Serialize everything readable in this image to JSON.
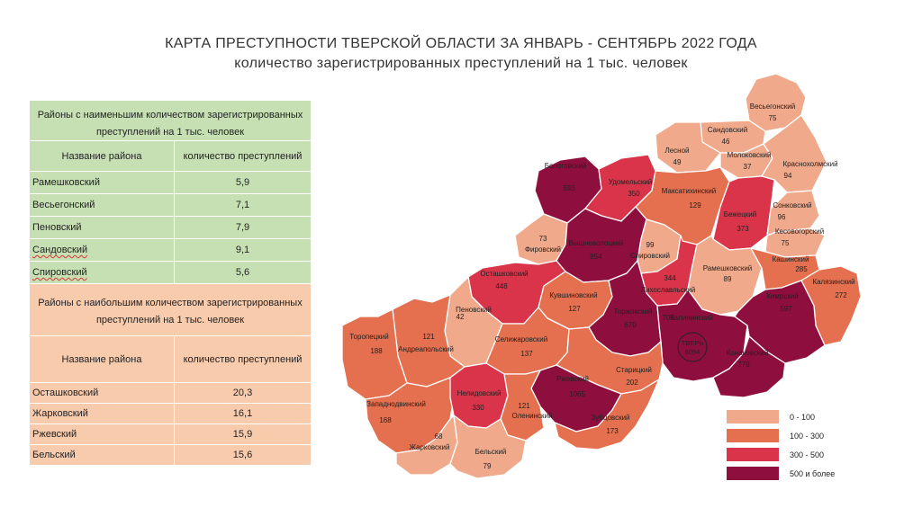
{
  "title": "КАРТА ПРЕСТУПНОСТИ ТВЕРСКОЙ ОБЛАСТИ ЗА ЯНВАРЬ - СЕНТЯБРЬ 2022 ГОДА",
  "subtitle": "количество зарегистрированных преступлений на 1 тыс. человек",
  "colors": {
    "c0": "#f0a98b",
    "c1": "#e4704f",
    "c2": "#d9344a",
    "c3": "#8e0f3d",
    "stroke": "#ffffff"
  },
  "table_low": {
    "header": "Районы с наименьшим количеством зарегистрированных преступлений на 1 тыс. человек",
    "col1": "Название района",
    "col2": "количество преступлений",
    "rows": [
      {
        "name": "Рамешковский",
        "value": "5,9"
      },
      {
        "name": "Весьегонский",
        "value": "7,1"
      },
      {
        "name": "Пеновский",
        "value": "7,9"
      },
      {
        "name": "Сандовский",
        "value": "9,1"
      },
      {
        "name": "Спировский",
        "value": "5,6"
      }
    ]
  },
  "table_high": {
    "header": "Районы с наибольшим количеством зарегистрированных преступлений на 1 тыс. человек",
    "col1": "Название района",
    "col2": "количество преступлений",
    "rows": [
      {
        "name": "Осташковский",
        "value": "20,3"
      },
      {
        "name": "Жарковский",
        "value": "16,1"
      },
      {
        "name": "Ржевский",
        "value": "15,9"
      },
      {
        "name": "Бельский",
        "value": "15,6"
      }
    ]
  },
  "legend": [
    {
      "label": "0 - 100",
      "color": "#f0a98b"
    },
    {
      "label": "100 - 300",
      "color": "#e4704f"
    },
    {
      "label": "300 - 500",
      "color": "#d9344a"
    },
    {
      "label": "500 и более",
      "color": "#8e0f3d"
    }
  ],
  "districts": [
    {
      "id": "vesegonsk",
      "name": "Весьегонский",
      "value": "75",
      "class": 0
    },
    {
      "id": "sandovo",
      "name": "Сандовский",
      "value": "46",
      "class": 0
    },
    {
      "id": "lesnoy",
      "name": "Лесной",
      "value": "49",
      "class": 0
    },
    {
      "id": "molokovo",
      "name": "Молоковский",
      "value": "37",
      "class": 0
    },
    {
      "id": "krasnyi_holm",
      "name": "Краснохолмский",
      "value": "94",
      "class": 0
    },
    {
      "id": "bologoe",
      "name": "Бологовский",
      "value": "593",
      "class": 3
    },
    {
      "id": "udomlya",
      "name": "Удомельский",
      "value": "350",
      "class": 2
    },
    {
      "id": "maksatikha",
      "name": "Максатихинский",
      "value": "129",
      "class": 1
    },
    {
      "id": "bezhetsk",
      "name": "Бежецкий",
      "value": "373",
      "class": 2
    },
    {
      "id": "sonkovo",
      "name": "Сонковский",
      "value": "96",
      "class": 0
    },
    {
      "id": "kesova",
      "name": "Кесовогорский",
      "value": "75",
      "class": 0
    },
    {
      "id": "firovo",
      "name": "Фировский",
      "value": "73",
      "class": 0
    },
    {
      "id": "vyshniy",
      "name": "Вышневолоцкий",
      "value": "854",
      "class": 3
    },
    {
      "id": "spirovo",
      "name": "Спировский",
      "value": "99",
      "class": 0
    },
    {
      "id": "likhoslavl",
      "name": "Лихославльский",
      "value": "344",
      "class": 2
    },
    {
      "id": "rameshki",
      "name": "Рамешковский",
      "value": "89",
      "class": 0
    },
    {
      "id": "kashin",
      "name": "Кашинский",
      "value": "285",
      "class": 1
    },
    {
      "id": "kalyazin",
      "name": "Калязинский",
      "value": "272",
      "class": 1
    },
    {
      "id": "ostashkov",
      "name": "Осташковский",
      "value": "448",
      "class": 2
    },
    {
      "id": "kuvshinovo",
      "name": "Кувшиновский",
      "value": "127",
      "class": 1
    },
    {
      "id": "torzhok",
      "name": "Торжокский",
      "value": "670",
      "class": 3
    },
    {
      "id": "kalinin",
      "name": "Калининский",
      "value": "708",
      "class": 3
    },
    {
      "id": "kimry",
      "name": "Кимрский",
      "value": "597",
      "class": 3
    },
    {
      "id": "penovo",
      "name": "Пеновский",
      "value": "42",
      "class": 0
    },
    {
      "id": "andreapol",
      "name": "Андреапольский",
      "value": "121",
      "class": 1
    },
    {
      "id": "selizharovo",
      "name": "Селижаровский",
      "value": "137",
      "class": 1
    },
    {
      "id": "toropets",
      "name": "Торопецкий",
      "value": "188",
      "class": 1
    },
    {
      "id": "staritsa",
      "name": "Старицкий",
      "value": "202",
      "class": 1
    },
    {
      "id": "konakovo",
      "name": "Конаковский",
      "value": "778",
      "class": 3
    },
    {
      "id": "rzhev",
      "name": "Ржевский",
      "value": "1065",
      "class": 3
    },
    {
      "id": "zapadnaya",
      "name": "Западнодвинский",
      "value": "168",
      "class": 1
    },
    {
      "id": "nelidovo",
      "name": "Нелидовский",
      "value": "330",
      "class": 2
    },
    {
      "id": "olenino",
      "name": "Оленинский",
      "value": "121",
      "class": 1
    },
    {
      "id": "zubtsov",
      "name": "Зубцовский",
      "value": "173",
      "class": 1
    },
    {
      "id": "zharkovskiy",
      "name": "Жарковский",
      "value": "68",
      "class": 0
    },
    {
      "id": "belyi",
      "name": "Бельский",
      "value": "79",
      "class": 0
    }
  ],
  "tver": {
    "name": "ТВЕРЬ",
    "value": "6094"
  }
}
